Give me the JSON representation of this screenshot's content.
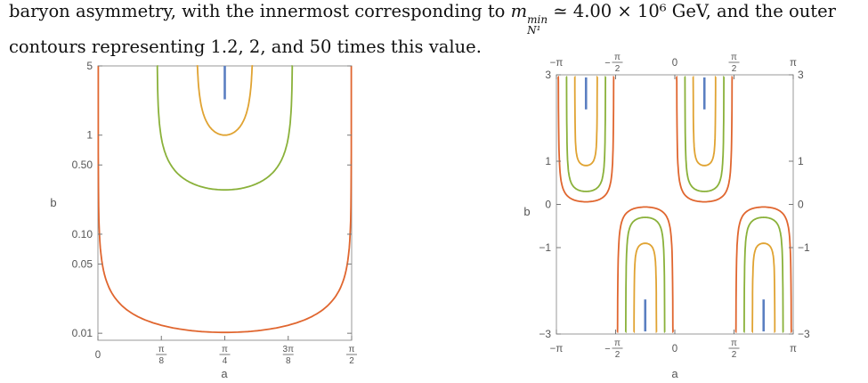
{
  "caption": {
    "line1_start": "baryon asymmetry, with the innermost corresponding to ",
    "m_symbol": "m",
    "m_sup": "min",
    "m_sub": "N¹",
    "line1_end": " ≃ 4.00 × 10⁶ GeV, and the outer",
    "line2": "contours representing 1.2, 2, and 50 times this value."
  },
  "colors": {
    "series_1": "#5b7fc1",
    "series_2": "#e0a332",
    "series_3": "#8ab13a",
    "series_4": "#e0662f",
    "axis": "#999999",
    "text": "#555555"
  },
  "chart_data": [
    {
      "type": "line",
      "panel": "left",
      "xlabel": "a",
      "ylabel": "b",
      "y_scale": "log",
      "xlim": [
        0,
        1.5708
      ],
      "ylim": [
        0.0085,
        5.0
      ],
      "x_ticks": [
        "0",
        "π/8",
        "π/4",
        "3π/8",
        "π/2"
      ],
      "x_tick_values": [
        0,
        0.3927,
        0.7854,
        1.1781,
        1.5708
      ],
      "y_ticks": [
        "0.01",
        "0.05",
        "0.10",
        "0.50",
        "1",
        "5"
      ],
      "y_tick_values": [
        0.01,
        0.05,
        0.1,
        0.5,
        1,
        5
      ],
      "series": [
        {
          "bmin": 2.3,
          "halfwidth": 0.0
        },
        {
          "bmin": 1.0,
          "halfwidth": 0.175
        },
        {
          "bmin": 0.28,
          "halfwidth": 0.42
        },
        {
          "bmin": 0.0102,
          "halfwidth": 0.785
        }
      ]
    },
    {
      "type": "line",
      "panel": "right",
      "xlabel": "a",
      "ylabel": "b",
      "xlim": [
        -3.1416,
        3.1416
      ],
      "ylim": [
        -3,
        3
      ],
      "x_ticks": [
        "−π",
        "−π/2",
        "0",
        "π/2",
        "π"
      ],
      "x_tick_values": [
        -3.1416,
        -1.5708,
        0,
        1.5708,
        3.1416
      ],
      "y_ticks": [
        "−3",
        "−1",
        "0",
        "1",
        "3"
      ],
      "y_tick_values": [
        -3,
        -1,
        0,
        1,
        3
      ],
      "series": [
        {
          "centers": [
            -2.356,
            0.785,
            -0.785,
            2.356
          ],
          "bmin": 2.2,
          "halfwidth": 0.0
        },
        {
          "centers": [
            -2.356,
            0.785,
            -0.785,
            2.356
          ],
          "bmin": 0.9,
          "halfwidth": 0.3
        },
        {
          "centers": [
            -2.356,
            0.785,
            -0.785,
            2.356
          ],
          "bmin": 0.3,
          "halfwidth": 0.52
        },
        {
          "centers": [
            -2.356,
            0.785,
            -0.785,
            2.356
          ],
          "bmin": 0.0,
          "halfwidth": 0.74
        }
      ]
    }
  ]
}
